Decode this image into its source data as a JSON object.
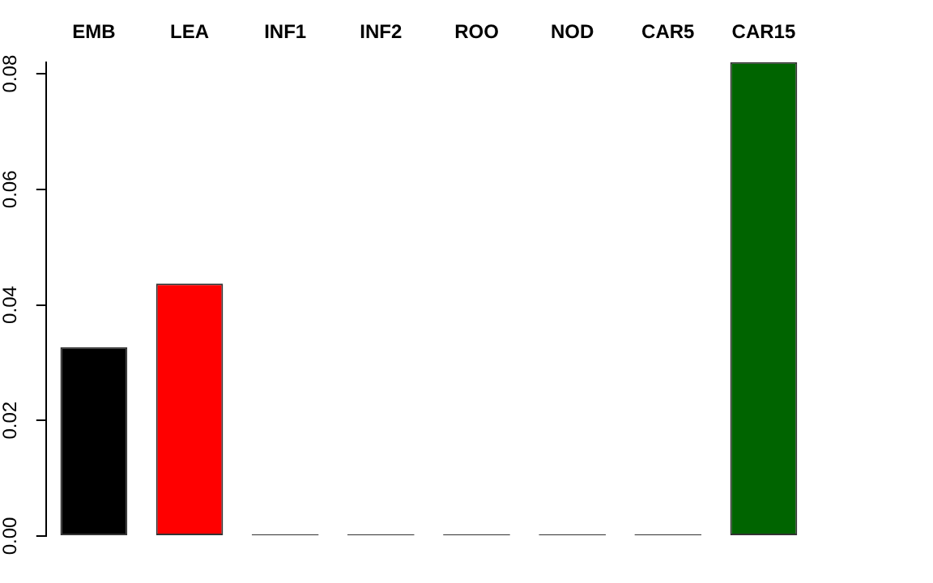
{
  "chart_data": {
    "type": "bar",
    "categories": [
      "EMB",
      "LEA",
      "INF1",
      "INF2",
      "ROO",
      "NOD",
      "CAR5",
      "CAR15"
    ],
    "values": [
      0.0327,
      0.0437,
      0,
      0,
      0,
      0,
      0,
      0.082
    ],
    "colors": [
      "#000000",
      "#ff0000",
      "#333333",
      "#333333",
      "#333333",
      "#333333",
      "#333333",
      "#006400"
    ],
    "ylim": [
      0,
      0.082
    ],
    "yticks": [
      {
        "value": 0,
        "label": "0.00"
      },
      {
        "value": 0.02,
        "label": "0.02"
      },
      {
        "value": 0.04,
        "label": "0.04"
      },
      {
        "value": 0.06,
        "label": "0.06"
      },
      {
        "value": 0.08,
        "label": "0.08"
      }
    ],
    "grid": false,
    "legend": false
  }
}
